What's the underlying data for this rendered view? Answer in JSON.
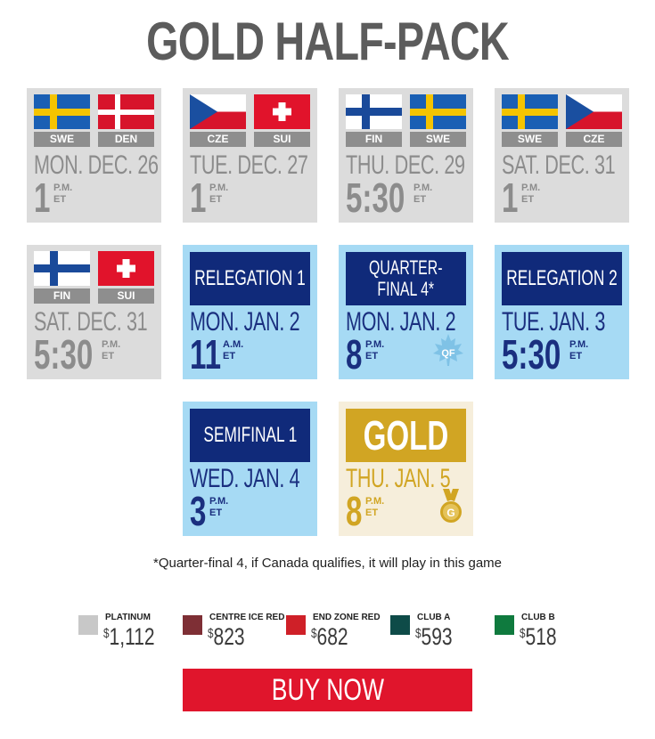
{
  "title": "GOLD HALF-PACK",
  "row1": [
    {
      "team1": "SWE",
      "team2": "DEN",
      "date": "MON. DEC. 26",
      "time": "1",
      "ampm": "P.M.",
      "tz": "ET"
    },
    {
      "team1": "CZE",
      "team2": "SUI",
      "date": "TUE. DEC. 27",
      "time": "1",
      "ampm": "P.M.",
      "tz": "ET"
    },
    {
      "team1": "FIN",
      "team2": "SWE",
      "date": "THU. DEC. 29",
      "time": "5:30",
      "ampm": "P.M.",
      "tz": "ET"
    },
    {
      "team1": "SWE",
      "team2": "CZE",
      "date": "SAT. DEC. 31",
      "time": "1",
      "ampm": "P.M.",
      "tz": "ET"
    }
  ],
  "row2": [
    {
      "team1": "FIN",
      "team2": "SUI",
      "date": "SAT. DEC. 31",
      "time": "5:30",
      "ampm": "P.M.",
      "tz": "ET"
    },
    {
      "label": "RELEGATION 1",
      "date": "MON. JAN. 2",
      "time": "11",
      "ampm": "A.M.",
      "tz": "ET"
    },
    {
      "label_line1": "QUARTER-",
      "label_line2": "FINAL 4*",
      "date": "MON. JAN. 2",
      "time": "8",
      "ampm": "P.M.",
      "tz": "ET",
      "badge": "QF"
    },
    {
      "label": "RELEGATION 2",
      "date": "TUE. JAN. 3",
      "time": "5:30",
      "ampm": "P.M.",
      "tz": "ET"
    }
  ],
  "row3": [
    {
      "label": "SEMIFINAL 1",
      "date": "WED. JAN. 4",
      "time": "3",
      "ampm": "P.M.",
      "tz": "ET"
    },
    {
      "label": "GOLD",
      "date": "THU. JAN. 5",
      "time": "8",
      "ampm": "P.M.",
      "tz": "ET",
      "badge": "G"
    }
  ],
  "note": "*Quarter-final 4, if Canada qualifies, it will play in this game",
  "legend": [
    {
      "name": "PLATINUM",
      "currency": "$",
      "price": "1,112",
      "color": "#c8c8c8"
    },
    {
      "name": "CENTRE ICE RED",
      "currency": "$",
      "price": "823",
      "color": "#7e2f35"
    },
    {
      "name": "END ZONE RED",
      "currency": "$",
      "price": "682",
      "color": "#cf2028"
    },
    {
      "name": "CLUB A",
      "currency": "$",
      "price": "593",
      "color": "#0e4b48"
    },
    {
      "name": "CLUB B",
      "currency": "$",
      "price": "518",
      "color": "#0f7a3e"
    }
  ],
  "cta": "BUY NOW",
  "colors": {
    "grey_card": "#dcdcdc",
    "blue_card": "#a6daf4",
    "navy": "#102a7a",
    "gold": "#d1a523",
    "cta_red": "#e0152c"
  }
}
